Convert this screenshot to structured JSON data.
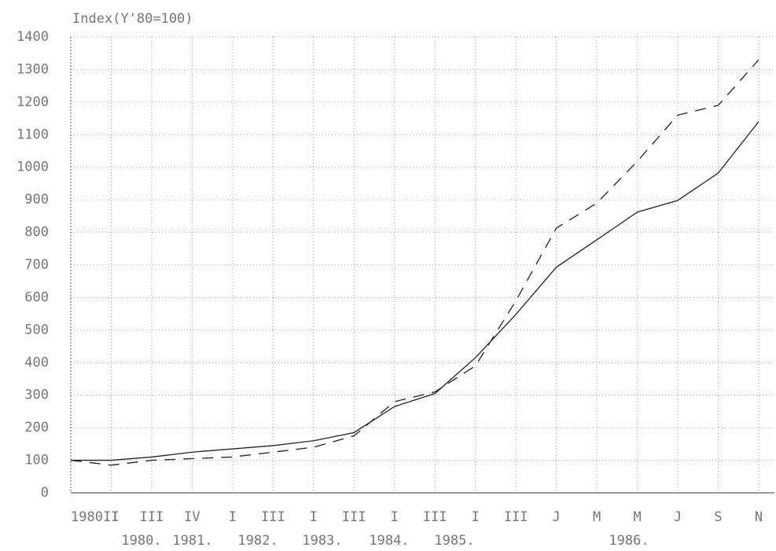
{
  "chart_data": {
    "type": "line",
    "title": "Index(Y'80=100)",
    "categories": [
      "1980.I",
      "II",
      "III",
      "IV",
      "I",
      "III",
      "I",
      "III",
      "I",
      "III",
      "I",
      "III",
      "J",
      "M",
      "M",
      "J",
      "S",
      "N"
    ],
    "year_labels": [
      "1980.",
      "1981.",
      "1982.",
      "1983.",
      "1984.",
      "1985.",
      "1986."
    ],
    "series": [
      {
        "color": "#222222",
        "dash": false,
        "values": [
          100,
          100,
          110,
          125,
          135,
          145,
          160,
          185,
          265,
          305,
          415,
          548,
          693,
          777,
          862,
          898,
          982,
          1140
        ]
      },
      {
        "color": "#222222",
        "dash": true,
        "values": [
          100,
          85,
          100,
          105,
          110,
          125,
          140,
          175,
          280,
          310,
          390,
          590,
          813,
          890,
          1018,
          1160,
          1190,
          1330
        ]
      }
    ],
    "ylim": [
      0,
      1400
    ],
    "yticks": [
      0,
      100,
      200,
      300,
      400,
      500,
      600,
      700,
      800,
      900,
      1000,
      1100,
      1200,
      1300,
      1400
    ],
    "grid": true
  }
}
